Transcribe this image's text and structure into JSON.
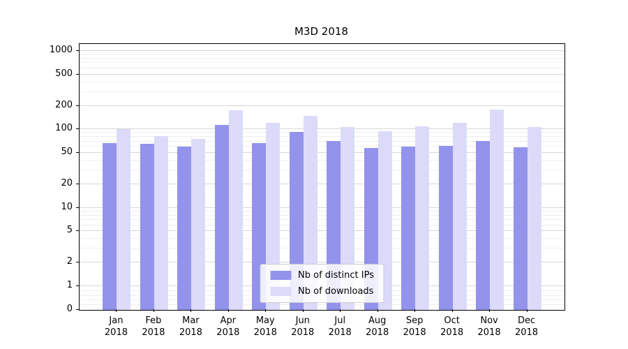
{
  "chart_data": {
    "type": "bar",
    "title": "M3D 2018",
    "categories": [
      "Jan 2018",
      "Feb 2018",
      "Mar 2018",
      "Apr 2018",
      "May 2018",
      "Jun 2018",
      "Jul 2018",
      "Aug 2018",
      "Sep 2018",
      "Oct 2018",
      "Nov 2018",
      "Dec 2018"
    ],
    "series": [
      {
        "name": "Nb of distinct IPs",
        "color": "#9393ec",
        "values": [
          67,
          66,
          60,
          115,
          67,
          93,
          71,
          58,
          60,
          62,
          71,
          59
        ]
      },
      {
        "name": "Nb of downloads",
        "color": "#dbdbf9",
        "values": [
          100,
          82,
          76,
          175,
          120,
          148,
          108,
          95,
          110,
          122,
          178,
          108
        ]
      }
    ],
    "y_ticks": [
      0,
      1,
      2,
      5,
      10,
      20,
      50,
      100,
      200,
      500,
      1000
    ],
    "y_scale": "symlog",
    "ylim": [
      0,
      1200
    ],
    "grid": true,
    "legend_position": "lower center"
  }
}
